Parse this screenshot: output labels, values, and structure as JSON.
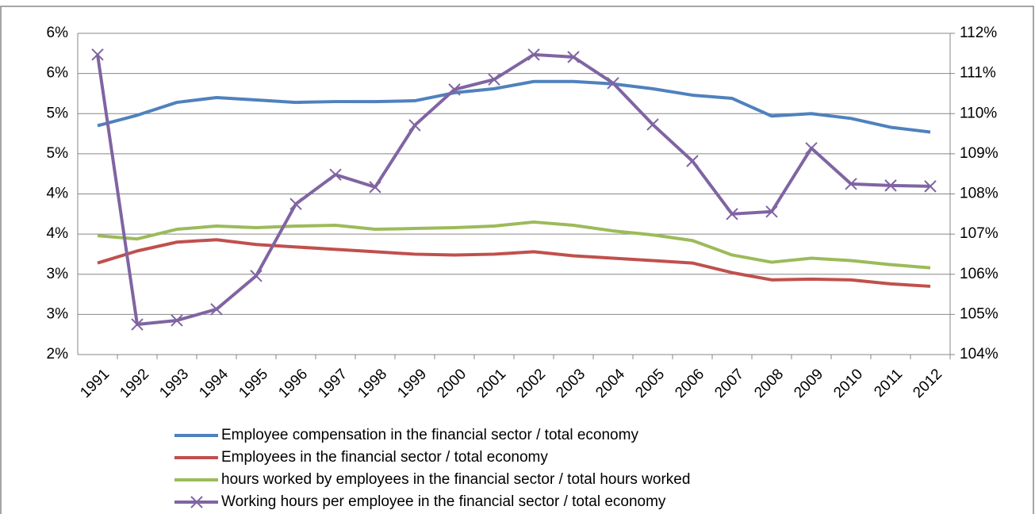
{
  "chart_data": {
    "type": "line",
    "categories": [
      "1991",
      "1992",
      "1993",
      "1994",
      "1995",
      "1996",
      "1997",
      "1998",
      "1999",
      "2000",
      "2001",
      "2002",
      "2003",
      "2004",
      "2005",
      "2006",
      "2007",
      "2008",
      "2009",
      "2010",
      "2011",
      "2012"
    ],
    "series": [
      {
        "name": "Employee compensation in the financial sector / total economy",
        "color": "#4f81bd",
        "values": [
          4.85,
          4.98,
          5.14,
          5.2,
          5.17,
          5.14,
          5.15,
          5.15,
          5.16,
          5.26,
          5.31,
          5.4,
          5.4,
          5.37,
          5.31,
          5.23,
          5.19,
          4.97,
          5.0,
          4.94,
          4.83,
          4.77
        ]
      },
      {
        "name": "Employees in the financial sector / total economy",
        "color": "#c0504d",
        "values": [
          3.14,
          3.29,
          3.4,
          3.43,
          3.37,
          3.34,
          3.31,
          3.28,
          3.25,
          3.24,
          3.25,
          3.28,
          3.23,
          3.2,
          3.17,
          3.14,
          3.02,
          2.93,
          2.94,
          2.93,
          2.88,
          2.85
        ]
      },
      {
        "name": "hours worked by employees in the financial sector / total hours worked",
        "color": "#9bbb59",
        "values": [
          3.48,
          3.44,
          3.56,
          3.6,
          3.58,
          3.6,
          3.61,
          3.56,
          3.57,
          3.58,
          3.6,
          3.65,
          3.61,
          3.54,
          3.49,
          3.42,
          3.24,
          3.15,
          3.2,
          3.17,
          3.12,
          3.08
        ]
      },
      {
        "name": "Working hours per employee in the financial sector / total economy",
        "color": "#8064a2",
        "axis": "y2",
        "marker": "x",
        "values": [
          111.47,
          104.75,
          104.85,
          105.13,
          105.96,
          107.75,
          108.48,
          108.17,
          109.71,
          110.6,
          110.85,
          111.47,
          111.41,
          110.76,
          109.73,
          108.82,
          107.5,
          107.56,
          109.14,
          108.25,
          108.21,
          108.19
        ]
      }
    ],
    "ylim": [
      2,
      6
    ],
    "yticks": [
      {
        "value": 2,
        "label": "2%"
      },
      {
        "value": 2.5,
        "label": "3%"
      },
      {
        "value": 3,
        "label": "3%"
      },
      {
        "value": 3.5,
        "label": "4%"
      },
      {
        "value": 4,
        "label": "4%"
      },
      {
        "value": 4.5,
        "label": "5%"
      },
      {
        "value": 5,
        "label": "5%"
      },
      {
        "value": 5.5,
        "label": "6%"
      },
      {
        "value": 6,
        "label": "6%"
      }
    ],
    "y2lim": [
      104,
      112
    ],
    "y2ticks": [
      {
        "value": 104,
        "label": "104%"
      },
      {
        "value": 105,
        "label": "105%"
      },
      {
        "value": 106,
        "label": "106%"
      },
      {
        "value": 107,
        "label": "107%"
      },
      {
        "value": 108,
        "label": "108%"
      },
      {
        "value": 109,
        "label": "109%"
      },
      {
        "value": 110,
        "label": "110%"
      },
      {
        "value": 111,
        "label": "111%"
      },
      {
        "value": 112,
        "label": "112%"
      }
    ],
    "grid": true,
    "legend": "bottom"
  }
}
